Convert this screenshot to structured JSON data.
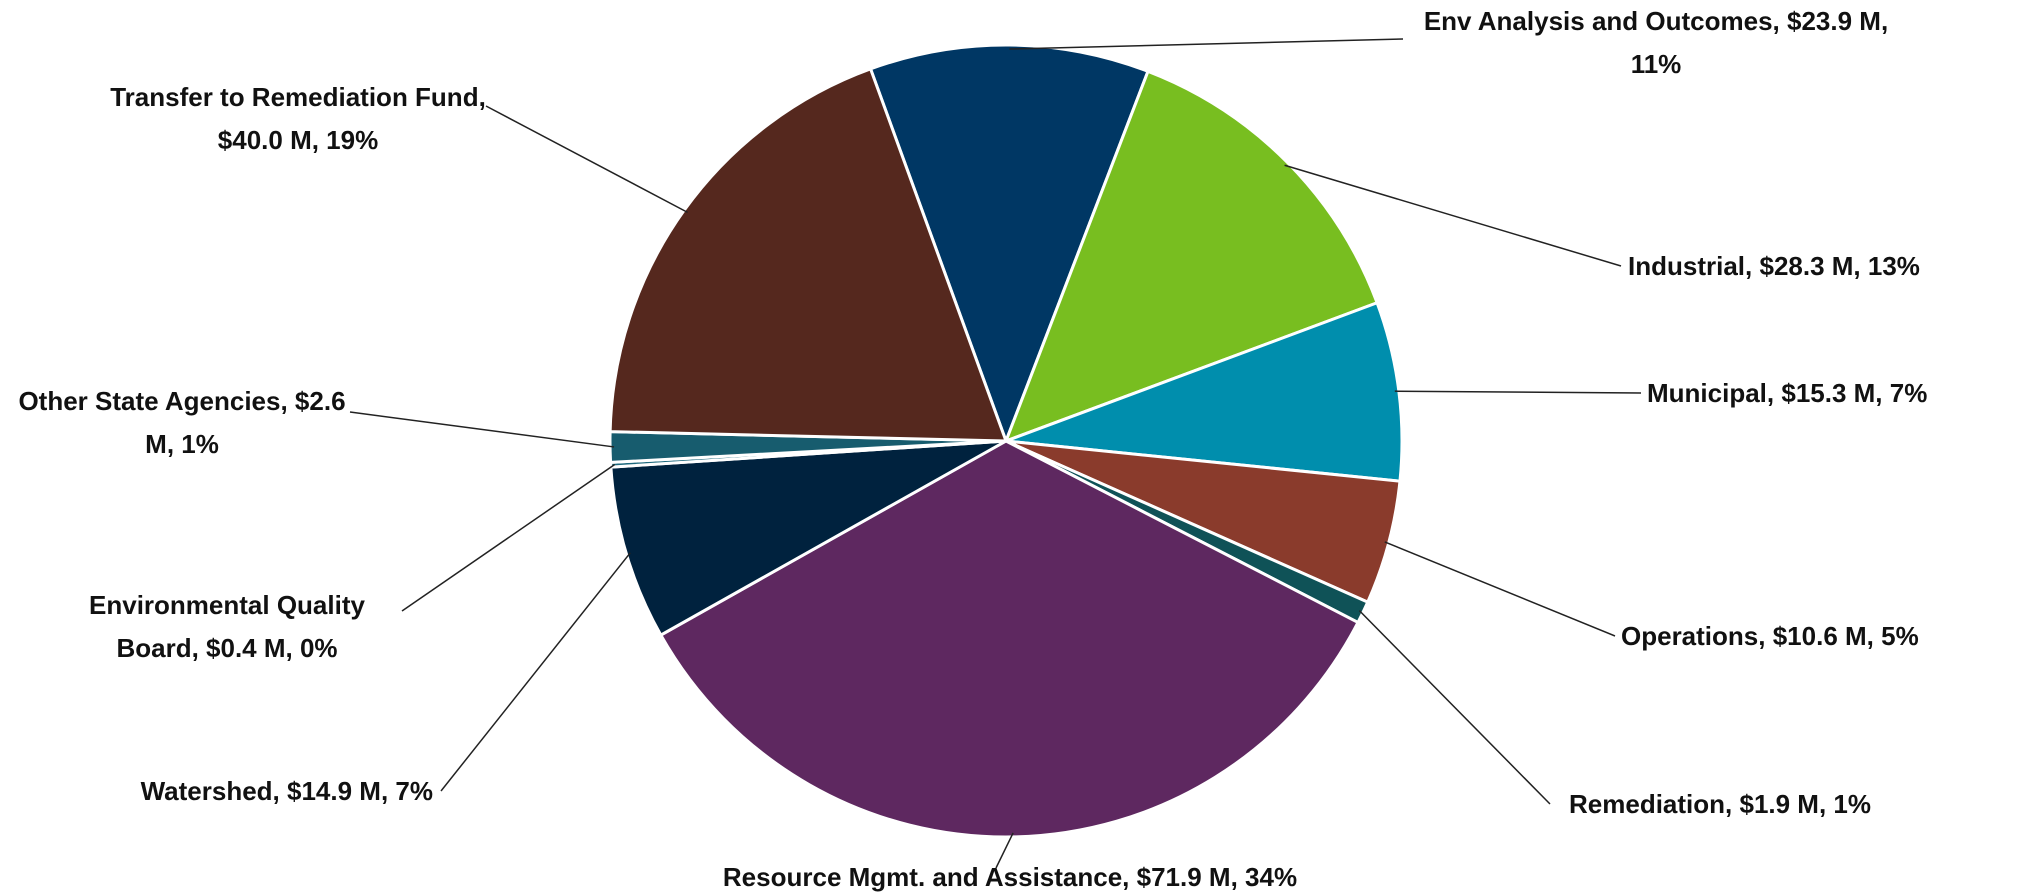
{
  "chart_data": {
    "type": "pie",
    "categories": [
      "Env Analysis and Outcomes,",
      "Industrial,",
      "Municipal,",
      "Operations,",
      "Remediation,",
      "Resource Mgmt. and Assistance,",
      "Watershed,",
      "Environmental Quality Board,",
      "Other State Agencies,",
      "Transfer to Remediation Fund,"
    ],
    "values": [
      23.9,
      28.3,
      15.3,
      10.6,
      1.9,
      71.9,
      14.9,
      0.4,
      2.6,
      40.0
    ],
    "value_labels": [
      "$23.9 M, 11%",
      "$28.3 M, 13%",
      "$15.3 M, 7%",
      "$10.6 M, 5%",
      "$1.9 M, 1%",
      "$71.9 M, 34%",
      "$14.9 M, 7%",
      "$0.4 M, 0%",
      "$2.6 M, 1%",
      "$40.0 M, 19%"
    ],
    "colors": [
      "#003764",
      "#78be20",
      "#008ead",
      "#8a3b2c",
      "#0f5257",
      "#5e2860",
      "#00223e",
      "#1f6a7e",
      "#175c6e",
      "#55281e"
    ]
  }
}
